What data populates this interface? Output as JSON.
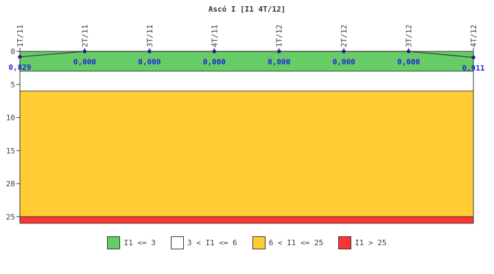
{
  "title": "Ascó I [I1 4T/12]",
  "chart_data": {
    "type": "line",
    "title": "Ascó I [I1 4T/12]",
    "categories": [
      "1T/11",
      "2T/11",
      "3T/11",
      "4T/11",
      "1T/12",
      "2T/12",
      "3T/12",
      "4T/12"
    ],
    "series": [
      {
        "name": "I1",
        "values": [
          0.829,
          0.0,
          0.0,
          0.0,
          0.0,
          0.0,
          0.0,
          0.911
        ]
      }
    ],
    "value_labels": [
      "0,829",
      "0,000",
      "0,000",
      "0,000",
      "0,000",
      "0,000",
      "0,000",
      "0,911"
    ],
    "xlabel": "",
    "ylabel": "",
    "ylim": [
      0,
      26
    ],
    "y_axis_inverted": true,
    "y_ticks": [
      0,
      5,
      10,
      15,
      20,
      25
    ],
    "grid": false,
    "legend_position": "bottom",
    "bands": [
      {
        "label": "I1 <= 3",
        "from": 0,
        "to": 3,
        "color": "#66CC66"
      },
      {
        "label": "3 < I1 <= 6",
        "from": 3,
        "to": 6,
        "color": "#FFFFFF"
      },
      {
        "label": "6 < I1 <= 25",
        "from": 6,
        "to": 25,
        "color": "#FFCC33"
      },
      {
        "label": "I1 > 25",
        "from": 25,
        "to": 26,
        "color": "#FF3333"
      }
    ],
    "colors": {
      "line": "#404040",
      "marker": "#2020A0",
      "value_label": "#2222DD",
      "axis": "#333333",
      "tick_label": "#404040",
      "background": "#FFFFFF"
    }
  }
}
